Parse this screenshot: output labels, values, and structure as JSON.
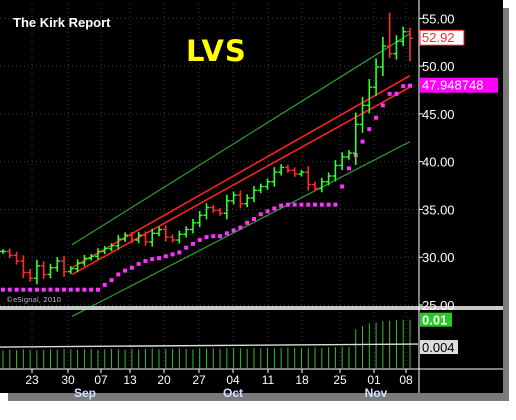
{
  "header": {
    "brand": "The Kirk Report",
    "ticker": "LVS"
  },
  "watermark": "©eSignal, 2010",
  "colors": {
    "background": "#000000",
    "price_up": "#33ff33",
    "price_down": "#ff2a2a",
    "sar_dots": "#ff33ff",
    "channel_outer": "#2f9e2f",
    "channel_inner": "#ff2020",
    "grid": "#3a3a3a",
    "last_price_badge": "#ff1111",
    "sar_badge": "#ff00ff",
    "volume_badge": "#22cc22"
  },
  "chart_data": [
    {
      "type": "line",
      "title": "LVS",
      "price_axis": {
        "ylim": [
          25,
          56.5
        ],
        "ticks": [
          "25.00",
          "30.00",
          "35.00",
          "40.00",
          "45.00",
          "50.00",
          "55.00"
        ],
        "badges": [
          {
            "label": "52.92",
            "value": 52.92,
            "color": "#ff1111",
            "text_color": "#ff2a2a"
          },
          {
            "label": "47.948748",
            "value": 47.95,
            "color": "#ff00ff",
            "text_color": "#ffffff"
          }
        ]
      },
      "x_axis": {
        "day_ticks": [
          "23",
          "30",
          "07",
          "13",
          "20",
          "27",
          "04",
          "11",
          "18",
          "25",
          "01",
          "08"
        ],
        "month_labels": [
          "Sep",
          "Oct",
          "Nov"
        ]
      },
      "series": [
        {
          "name": "",
          "kind": "ohlc_close",
          "values": [
            30.6,
            30.2,
            29.6,
            28.4,
            27.8,
            29.1,
            28.2,
            28.9,
            29.6,
            28.5,
            28.8,
            29.4,
            29.9,
            30.1,
            30.6,
            30.9,
            31.2,
            31.9,
            32.3,
            31.8,
            32.3,
            31.6,
            32.5,
            32.9,
            32.1,
            31.8,
            32.4,
            32.9,
            33.6,
            34.4,
            35.2,
            34.9,
            34.6,
            35.9,
            36.5,
            35.6,
            36.2,
            37.0,
            37.4,
            37.9,
            38.9,
            39.4,
            39.1,
            38.7,
            38.9,
            37.6,
            37.2,
            37.9,
            38.5,
            39.6,
            40.5,
            40.9,
            43.9,
            45.9,
            47.8,
            49.9,
            52.1,
            51.3,
            52.6,
            53.6,
            52.92
          ]
        },
        {
          "name": "",
          "kind": "parabolic_sar",
          "values": [
            26.6,
            26.6,
            26.6,
            26.6,
            26.6,
            26.6,
            26.6,
            26.6,
            26.6,
            26.6,
            26.6,
            26.6,
            26.6,
            26.6,
            26.6,
            27.1,
            27.6,
            28.2,
            28.6,
            28.9,
            29.3,
            29.6,
            29.8,
            29.9,
            30.1,
            30.3,
            30.5,
            31.0,
            31.4,
            31.8,
            32.1,
            32.2,
            32.2,
            32.5,
            32.8,
            33.1,
            33.6,
            34.0,
            34.5,
            34.8,
            35.1,
            35.4,
            35.5,
            35.5,
            35.5,
            35.5,
            35.5,
            35.5,
            35.5,
            35.5,
            37.4,
            39.3,
            40.7,
            42.1,
            43.4,
            44.6,
            45.9,
            47.1,
            47.1,
            47.9,
            47.95
          ]
        },
        {
          "name": "",
          "kind": "channel_outer_upper",
          "points": [
            [
              0,
              31.3
            ],
            [
              60,
              53.4
            ]
          ]
        },
        {
          "name": "",
          "kind": "channel_inner_upper",
          "points": [
            [
              0,
              28.9
            ],
            [
              60,
              49.0
            ]
          ]
        },
        {
          "name": "",
          "kind": "channel_inner_lower",
          "points": [
            [
              0,
              28.2
            ],
            [
              60,
              47.8
            ]
          ]
        },
        {
          "name": "",
          "kind": "channel_outer_lower",
          "points": [
            [
              0,
              23.8
            ],
            [
              60,
              42.1
            ]
          ]
        }
      ],
      "grid": true
    },
    {
      "type": "bar",
      "title": "",
      "ylim": [
        0,
        0.0125
      ],
      "badges": [
        {
          "label": "0.01",
          "value": 0.0106,
          "color": "#22cc22"
        },
        {
          "label": "0.004",
          "value": 0.0046,
          "color": "#dddddd"
        }
      ],
      "values": [
        0.0038,
        0.004,
        0.0039,
        0.0041,
        0.004,
        0.0039,
        0.004,
        0.0041,
        0.004,
        0.0042,
        0.0041,
        0.004,
        0.0041,
        0.0042,
        0.004,
        0.0041,
        0.0042,
        0.0041,
        0.004,
        0.0042,
        0.0041,
        0.0042,
        0.0043,
        0.0041,
        0.0042,
        0.0042,
        0.0043,
        0.0042,
        0.0041,
        0.0043,
        0.0042,
        0.0043,
        0.0042,
        0.0043,
        0.0044,
        0.0043,
        0.0042,
        0.0044,
        0.0043,
        0.0044,
        0.0043,
        0.0044,
        0.0045,
        0.0044,
        0.0043,
        0.0044,
        0.0045,
        0.0044,
        0.0045,
        0.0046,
        0.0047,
        0.0046,
        0.0085,
        0.0092,
        0.0098,
        0.01,
        0.0103,
        0.0104,
        0.0105,
        0.0106,
        0.0106
      ],
      "average": 0.0046,
      "grid": true
    }
  ]
}
